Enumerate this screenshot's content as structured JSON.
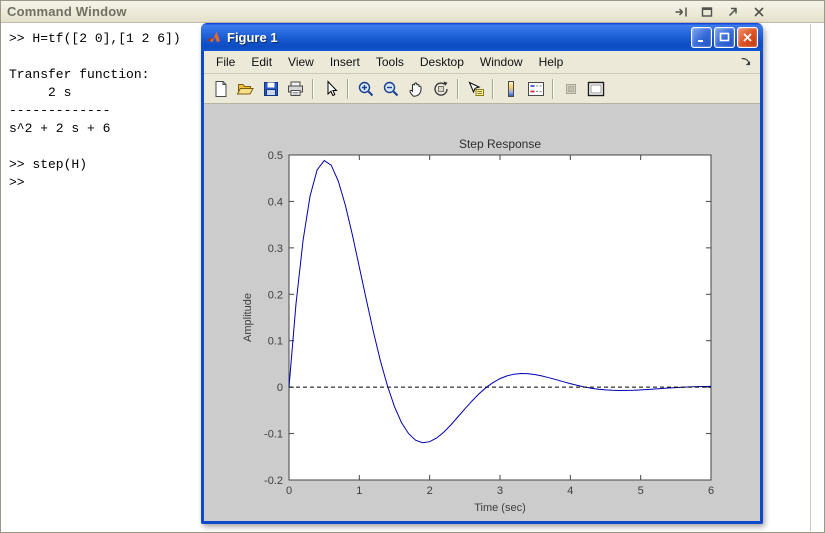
{
  "command_window": {
    "title": "Command Window",
    "header_icons": [
      "dock-icon",
      "maximize-icon",
      "undock-icon",
      "close-icon"
    ],
    "lines": [
      ">> H=tf([2 0],[1 2 6])",
      "",
      "Transfer function:",
      "     2 s",
      "-------------",
      "s^2 + 2 s + 6",
      "",
      ">> step(H)",
      ">>"
    ]
  },
  "figure_window": {
    "title": "Figure 1",
    "titlebar_buttons": [
      "minimize-icon",
      "maximize-icon",
      "close-icon"
    ],
    "menu": [
      "File",
      "Edit",
      "View",
      "Insert",
      "Tools",
      "Desktop",
      "Window",
      "Help"
    ],
    "menu_overflow_icon": "dock-figure-arrow-icon",
    "toolbar_icons": [
      "new-figure",
      "open-file",
      "save-figure",
      "print-figure",
      "edit-plot-pointer",
      "zoom-in",
      "zoom-out",
      "pan-hand",
      "rotate-3d",
      "data-cursor",
      "insert-colorbar",
      "insert-legend",
      "hide-plot-tools",
      "show-plot-tools"
    ]
  },
  "colors": {
    "titlebar_blue": "#1557cf",
    "window_border_blue": "#0f49c9",
    "desktop_beige": "#ece9d8",
    "figure_canvas_gray": "#cccccc",
    "curve_blue": "#0000ae",
    "steady_state_black": "#000000",
    "axis_line": "#464646",
    "tick_text": "#3e3e3e"
  },
  "chart_data": {
    "type": "line",
    "title": "Step Response",
    "xlabel": "Time (sec)",
    "ylabel": "Amplitude",
    "xlim": [
      0,
      6
    ],
    "ylim": [
      -0.2,
      0.5
    ],
    "xticks": [
      0,
      1,
      2,
      3,
      4,
      5,
      6
    ],
    "xtick_labels": [
      "0",
      "1",
      "2",
      "3",
      "4",
      "5",
      "6"
    ],
    "yticks": [
      -0.2,
      -0.1,
      0,
      0.1,
      0.2,
      0.3,
      0.4,
      0.5
    ],
    "ytick_labels": [
      "-0.2",
      "-0.1",
      "0",
      "0.1",
      "0.2",
      "0.3",
      "0.4",
      "0.5"
    ],
    "grid": false,
    "legend": false,
    "series": [
      {
        "name": "step response of H = 2s/(s^2+2s+6)",
        "color": "#0000ae",
        "style": "solid",
        "x": [
          0,
          0.1,
          0.2,
          0.3,
          0.4,
          0.5,
          0.6,
          0.7,
          0.8,
          0.9,
          1,
          1.1,
          1.2,
          1.3,
          1.4,
          1.5,
          1.6,
          1.7,
          1.8,
          1.9,
          2,
          2.1,
          2.2,
          2.3,
          2.4,
          2.5,
          2.6,
          2.7,
          2.8,
          2.9,
          3,
          3.1,
          3.2,
          3.3,
          3.4,
          3.5,
          3.6,
          3.7,
          3.8,
          3.9,
          4,
          4.1,
          4.2,
          4.3,
          4.4,
          4.5,
          4.6,
          4.7,
          4.8,
          4.9,
          5,
          5.1,
          5.2,
          5.3,
          5.4,
          5.5,
          5.6,
          5.7,
          5.8,
          5.9,
          6
        ],
        "y": [
          0,
          0.1795,
          0.3167,
          0.4119,
          0.4677,
          0.4879,
          0.478,
          0.4442,
          0.3924,
          0.3288,
          0.2588,
          0.1877,
          0.1192,
          0.0567,
          0.0024,
          -0.0421,
          -0.0763,
          -0.1001,
          -0.1143,
          -0.1196,
          -0.1176,
          -0.1095,
          -0.097,
          -0.0815,
          -0.0644,
          -0.0469,
          -0.0301,
          -0.0146,
          -0.0012,
          0.0098,
          0.0184,
          0.0243,
          0.0279,
          0.0293,
          0.0289,
          0.027,
          0.024,
          0.0202,
          0.016,
          0.0117,
          0.0076,
          0.0038,
          0.0004,
          -0.0023,
          -0.0044,
          -0.0059,
          -0.0068,
          -0.0072,
          -0.0071,
          -0.0067,
          -0.0059,
          -0.005,
          -0.004,
          -0.0029,
          -0.0019,
          -0.001,
          -0.0001,
          0.0005,
          0.0011,
          0.0014,
          0.0017
        ]
      },
      {
        "name": "steady-state value",
        "color": "#000000",
        "style": "dashed",
        "y_const": 0
      }
    ]
  }
}
